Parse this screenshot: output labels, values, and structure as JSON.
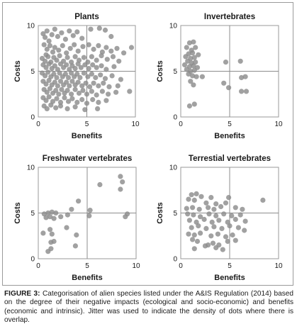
{
  "caption": {
    "label": "FIGURE 3:",
    "text": "Categorisation of alien species listed under the A&IS Regulation (2014) based on the degree of their negative impacts (ecological and socio-economic) and benefits (economic and intrinsic). Jitter was used to indicate the density of dots where there is overlap."
  },
  "colors": {
    "point": "#8c8c8c",
    "line": "#8c8c8c",
    "text": "#1a1a1a"
  },
  "chart_data": [
    {
      "type": "scatter",
      "title": "Plants",
      "xlabel": "Benefits",
      "ylabel": "Costs",
      "xlim": [
        0,
        10
      ],
      "ylim": [
        0,
        10
      ],
      "xticks": [
        "0",
        "5",
        "10"
      ],
      "yticks": [
        "0",
        "5",
        "10"
      ],
      "reference_lines": {
        "x": 5,
        "y": 5
      },
      "points": [
        [
          0.5,
          9.1
        ],
        [
          0.7,
          8.7
        ],
        [
          0.9,
          9.4
        ],
        [
          1.1,
          8.3
        ],
        [
          1.4,
          9.0
        ],
        [
          1.7,
          9.6
        ],
        [
          2.0,
          8.8
        ],
        [
          2.4,
          9.2
        ],
        [
          2.8,
          8.5
        ],
        [
          3.2,
          9.4
        ],
        [
          3.6,
          8.9
        ],
        [
          4.0,
          9.3
        ],
        [
          4.5,
          8.6
        ],
        [
          5.4,
          9.6
        ],
        [
          6.3,
          9.7
        ],
        [
          6.9,
          9.5
        ],
        [
          7.5,
          8.8
        ],
        [
          0.6,
          7.9
        ],
        [
          0.9,
          7.4
        ],
        [
          1.2,
          7.8
        ],
        [
          1.5,
          7.1
        ],
        [
          0.8,
          6.8
        ],
        [
          1.7,
          7.6
        ],
        [
          2.1,
          7.3
        ],
        [
          2.5,
          7.8
        ],
        [
          2.9,
          7.0
        ],
        [
          3.3,
          7.5
        ],
        [
          3.7,
          7.9
        ],
        [
          4.1,
          7.2
        ],
        [
          4.6,
          7.7
        ],
        [
          5.2,
          7.9
        ],
        [
          5.7,
          7.4
        ],
        [
          6.2,
          7.8
        ],
        [
          6.6,
          7.1
        ],
        [
          7.0,
          7.6
        ],
        [
          7.5,
          7.2
        ],
        [
          8.1,
          7.5
        ],
        [
          8.8,
          7.0
        ],
        [
          9.6,
          7.6
        ],
        [
          0.4,
          6.4
        ],
        [
          0.7,
          6.1
        ],
        [
          1.0,
          6.6
        ],
        [
          1.3,
          6.0
        ],
        [
          1.6,
          6.5
        ],
        [
          1.9,
          6.2
        ],
        [
          2.2,
          6.7
        ],
        [
          2.6,
          6.1
        ],
        [
          3.0,
          6.5
        ],
        [
          3.4,
          6.0
        ],
        [
          3.8,
          6.6
        ],
        [
          4.2,
          6.2
        ],
        [
          4.7,
          6.5
        ],
        [
          5.1,
          6.0
        ],
        [
          5.5,
          6.6
        ],
        [
          6.0,
          6.2
        ],
        [
          6.5,
          6.7
        ],
        [
          7.1,
          6.3
        ],
        [
          7.7,
          6.6
        ],
        [
          8.3,
          6.1
        ],
        [
          0.5,
          5.7
        ],
        [
          0.8,
          5.4
        ],
        [
          1.1,
          5.8
        ],
        [
          1.4,
          5.3
        ],
        [
          1.7,
          5.6
        ],
        [
          2.0,
          5.2
        ],
        [
          2.3,
          5.8
        ],
        [
          2.6,
          5.4
        ],
        [
          2.9,
          5.7
        ],
        [
          3.2,
          5.2
        ],
        [
          3.5,
          5.6
        ],
        [
          3.8,
          5.3
        ],
        [
          4.1,
          5.8
        ],
        [
          4.4,
          5.4
        ],
        [
          4.8,
          5.7
        ],
        [
          5.2,
          5.3
        ],
        [
          5.6,
          5.7
        ],
        [
          6.0,
          5.4
        ],
        [
          6.5,
          5.6
        ],
        [
          7.0,
          5.2
        ],
        [
          7.8,
          5.5
        ],
        [
          0.4,
          4.8
        ],
        [
          0.7,
          4.5
        ],
        [
          1.0,
          4.9
        ],
        [
          1.3,
          4.4
        ],
        [
          1.6,
          4.7
        ],
        [
          1.9,
          4.3
        ],
        [
          2.2,
          4.8
        ],
        [
          2.5,
          4.4
        ],
        [
          2.8,
          4.7
        ],
        [
          3.1,
          4.3
        ],
        [
          3.4,
          4.8
        ],
        [
          3.7,
          4.4
        ],
        [
          4.0,
          4.7
        ],
        [
          4.3,
          4.3
        ],
        [
          4.7,
          4.8
        ],
        [
          5.1,
          4.4
        ],
        [
          5.5,
          4.7
        ],
        [
          5.9,
          4.3
        ],
        [
          6.4,
          4.6
        ],
        [
          6.9,
          4.2
        ],
        [
          7.6,
          4.5
        ],
        [
          8.5,
          4.1
        ],
        [
          0.5,
          3.9
        ],
        [
          0.8,
          3.6
        ],
        [
          1.1,
          4.0
        ],
        [
          1.4,
          3.5
        ],
        [
          1.7,
          3.8
        ],
        [
          2.0,
          3.4
        ],
        [
          2.3,
          3.9
        ],
        [
          2.6,
          3.5
        ],
        [
          2.9,
          3.8
        ],
        [
          3.2,
          3.4
        ],
        [
          3.5,
          3.9
        ],
        [
          3.8,
          3.5
        ],
        [
          4.1,
          3.8
        ],
        [
          4.5,
          3.4
        ],
        [
          4.9,
          3.7
        ],
        [
          5.3,
          3.3
        ],
        [
          5.7,
          3.7
        ],
        [
          6.2,
          3.4
        ],
        [
          6.7,
          3.7
        ],
        [
          7.3,
          3.3
        ],
        [
          8.2,
          3.4
        ],
        [
          0.6,
          3.0
        ],
        [
          0.9,
          2.7
        ],
        [
          1.2,
          3.1
        ],
        [
          1.5,
          2.6
        ],
        [
          1.8,
          2.9
        ],
        [
          2.1,
          2.5
        ],
        [
          2.4,
          3.0
        ],
        [
          2.7,
          2.6
        ],
        [
          3.0,
          2.9
        ],
        [
          3.4,
          2.5
        ],
        [
          3.8,
          3.0
        ],
        [
          4.2,
          2.6
        ],
        [
          4.6,
          2.9
        ],
        [
          5.0,
          2.5
        ],
        [
          5.5,
          2.8
        ],
        [
          6.0,
          2.4
        ],
        [
          6.6,
          2.8
        ],
        [
          7.2,
          2.5
        ],
        [
          8.0,
          2.7
        ],
        [
          9.4,
          2.8
        ],
        [
          0.5,
          2.1
        ],
        [
          0.8,
          1.8
        ],
        [
          1.1,
          2.2
        ],
        [
          1.5,
          1.7
        ],
        [
          1.9,
          2.0
        ],
        [
          2.3,
          1.6
        ],
        [
          2.7,
          2.1
        ],
        [
          3.1,
          1.7
        ],
        [
          3.5,
          2.0
        ],
        [
          4.0,
          1.6
        ],
        [
          4.5,
          1.9
        ],
        [
          5.0,
          1.5
        ],
        [
          5.6,
          1.9
        ],
        [
          6.2,
          1.6
        ],
        [
          7.0,
          1.8
        ],
        [
          0.6,
          1.2
        ],
        [
          0.9,
          0.9
        ],
        [
          1.3,
          1.3
        ],
        [
          1.8,
          1.0
        ],
        [
          2.3,
          1.2
        ],
        [
          3.0,
          0.9
        ],
        [
          3.8,
          1.1
        ],
        [
          4.8,
          0.8
        ],
        [
          6.1,
          0.9
        ]
      ]
    },
    {
      "type": "scatter",
      "title": "Invertebrates",
      "xlabel": "Benefits",
      "ylabel": "Costs",
      "xlim": [
        0,
        10
      ],
      "ylim": [
        0,
        10
      ],
      "xticks": [
        "0",
        "5",
        "10"
      ],
      "yticks": [
        "0",
        "5",
        "10"
      ],
      "reference_lines": {
        "x": 5,
        "y": 5
      },
      "points": [
        [
          0.9,
          8.1
        ],
        [
          1.3,
          8.2
        ],
        [
          0.6,
          7.6
        ],
        [
          1.1,
          7.3
        ],
        [
          1.5,
          7.6
        ],
        [
          0.8,
          6.9
        ],
        [
          1.2,
          7.0
        ],
        [
          0.5,
          6.6
        ],
        [
          1.0,
          6.4
        ],
        [
          1.4,
          6.5
        ],
        [
          1.8,
          6.8
        ],
        [
          0.7,
          6.1
        ],
        [
          1.1,
          5.9
        ],
        [
          1.5,
          6.0
        ],
        [
          0.4,
          5.7
        ],
        [
          0.9,
          5.5
        ],
        [
          1.3,
          5.6
        ],
        [
          1.7,
          5.4
        ],
        [
          0.6,
          5.2
        ],
        [
          1.0,
          5.0
        ],
        [
          1.4,
          5.1
        ],
        [
          0.8,
          4.7
        ],
        [
          1.2,
          4.5
        ],
        [
          1.6,
          4.4
        ],
        [
          2.2,
          4.4
        ],
        [
          1.0,
          3.9
        ],
        [
          1.3,
          3.5
        ],
        [
          0.9,
          1.2
        ],
        [
          1.4,
          1.4
        ],
        [
          4.6,
          6.0
        ],
        [
          6.1,
          6.1
        ],
        [
          4.4,
          3.7
        ],
        [
          6.2,
          4.3
        ],
        [
          6.6,
          4.4
        ],
        [
          6.2,
          2.8
        ],
        [
          6.7,
          2.8
        ],
        [
          4.9,
          3.2
        ]
      ]
    },
    {
      "type": "scatter",
      "title": "Freshwater vertebrates",
      "xlabel": "Benefits",
      "ylabel": "Costs",
      "xlim": [
        0,
        10
      ],
      "ylim": [
        0,
        10
      ],
      "xticks": [
        "0",
        "5",
        "10"
      ],
      "yticks": [
        "0",
        "5",
        "10"
      ],
      "reference_lines": {
        "x": 5,
        "y": 5
      },
      "points": [
        [
          0.6,
          4.9
        ],
        [
          1.0,
          5.0
        ],
        [
          1.4,
          5.1
        ],
        [
          1.8,
          5.0
        ],
        [
          0.8,
          4.5
        ],
        [
          1.2,
          4.6
        ],
        [
          1.6,
          4.4
        ],
        [
          2.3,
          4.6
        ],
        [
          3.0,
          4.8
        ],
        [
          3.4,
          5.4
        ],
        [
          4.1,
          6.3
        ],
        [
          2.9,
          3.4
        ],
        [
          1.2,
          3.2
        ],
        [
          0.5,
          2.8
        ],
        [
          1.4,
          2.7
        ],
        [
          3.9,
          2.6
        ],
        [
          1.3,
          1.8
        ],
        [
          1.6,
          1.9
        ],
        [
          3.8,
          1.4
        ],
        [
          1.3,
          1.1
        ],
        [
          1.0,
          0.8
        ],
        [
          5.3,
          5.3
        ],
        [
          5.2,
          4.7
        ],
        [
          6.3,
          8.1
        ],
        [
          8.4,
          9.0
        ],
        [
          8.6,
          8.4
        ],
        [
          8.4,
          7.6
        ],
        [
          9.1,
          4.9
        ],
        [
          8.9,
          4.6
        ]
      ]
    },
    {
      "type": "scatter",
      "title": "Terrestial vertebrates",
      "xlabel": "Benefits",
      "ylabel": "Costs",
      "xlim": [
        0,
        10
      ],
      "ylim": [
        0,
        10
      ],
      "xticks": [
        "0",
        "5",
        "10"
      ],
      "yticks": [
        "0",
        "5",
        "10"
      ],
      "reference_lines": {
        "x": 5,
        "y": 5
      },
      "points": [
        [
          1.1,
          7.0
        ],
        [
          1.6,
          7.1
        ],
        [
          2.1,
          6.8
        ],
        [
          3.1,
          6.7
        ],
        [
          4.9,
          6.7
        ],
        [
          0.8,
          6.5
        ],
        [
          1.4,
          6.4
        ],
        [
          2.6,
          6.1
        ],
        [
          3.6,
          6.0
        ],
        [
          4.6,
          6.1
        ],
        [
          0.6,
          5.5
        ],
        [
          1.2,
          5.6
        ],
        [
          1.9,
          5.4
        ],
        [
          2.8,
          5.6
        ],
        [
          3.4,
          5.4
        ],
        [
          4.1,
          5.7
        ],
        [
          5.6,
          5.6
        ],
        [
          6.3,
          5.4
        ],
        [
          8.4,
          6.4
        ],
        [
          0.7,
          4.9
        ],
        [
          1.3,
          4.8
        ],
        [
          2.0,
          4.6
        ],
        [
          2.9,
          4.9
        ],
        [
          3.6,
          4.7
        ],
        [
          4.4,
          4.9
        ],
        [
          5.2,
          4.7
        ],
        [
          6.1,
          4.8
        ],
        [
          0.9,
          4.2
        ],
        [
          1.6,
          4.0
        ],
        [
          2.4,
          4.3
        ],
        [
          3.2,
          4.0
        ],
        [
          3.9,
          4.2
        ],
        [
          4.8,
          4.0
        ],
        [
          5.6,
          4.3
        ],
        [
          6.6,
          4.1
        ],
        [
          1.1,
          3.4
        ],
        [
          1.8,
          3.6
        ],
        [
          2.6,
          3.3
        ],
        [
          3.4,
          3.5
        ],
        [
          4.2,
          3.3
        ],
        [
          5.0,
          3.6
        ],
        [
          5.9,
          3.4
        ],
        [
          6.5,
          3.1
        ],
        [
          0.8,
          2.7
        ],
        [
          1.4,
          2.6
        ],
        [
          2.0,
          2.8
        ],
        [
          3.1,
          2.5
        ],
        [
          3.8,
          2.7
        ],
        [
          4.6,
          2.4
        ],
        [
          5.3,
          2.6
        ],
        [
          1.2,
          2.1
        ],
        [
          1.7,
          1.9
        ],
        [
          2.8,
          1.5
        ],
        [
          3.3,
          1.7
        ],
        [
          3.9,
          1.5
        ],
        [
          4.8,
          1.9
        ],
        [
          5.6,
          2.0
        ],
        [
          1.4,
          1.1
        ],
        [
          2.5,
          1.4
        ],
        [
          3.6,
          1.2
        ],
        [
          4.3,
          1.0
        ]
      ]
    }
  ]
}
